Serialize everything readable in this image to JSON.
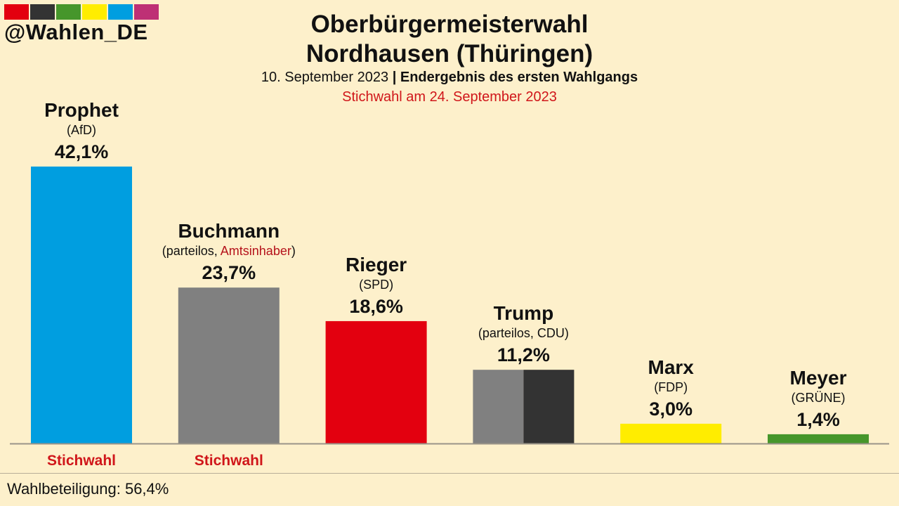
{
  "header": {
    "handle": "@Wahlen_DE",
    "strip_colors": [
      "#e3000f",
      "#333333",
      "#46962b",
      "#ffed00",
      "#009ee0",
      "#be3075"
    ]
  },
  "title": {
    "line1": "Oberbürgermeisterwahl",
    "line2": "Nordhausen (Thüringen)"
  },
  "subtitle": {
    "date": "10. September 2023",
    "separator": "|",
    "result_type": "Endergebnis des ersten Wahlgangs"
  },
  "runoff_note": "Stichwahl am 24. September 2023",
  "footer": {
    "turnout": "Wahlbeteiligung: 56,4%"
  },
  "chart_data": {
    "type": "bar",
    "title": "Oberbürgermeisterwahl Nordhausen (Thüringen)",
    "categories": [
      "Prophet",
      "Buchmann",
      "Rieger",
      "Trump",
      "Marx",
      "Meyer"
    ],
    "values": [
      42.1,
      23.7,
      18.6,
      11.2,
      3.0,
      1.4
    ],
    "value_labels": [
      "42,1%",
      "23,7%",
      "18,6%",
      "11,2%",
      "3,0%",
      "1,4%"
    ],
    "candidates": [
      {
        "name": "Prophet",
        "party": "(AfD)",
        "value": 42.1,
        "label": "42,1%",
        "colors": [
          "#009ee0"
        ],
        "runoff": "Stichwahl"
      },
      {
        "name": "Buchmann",
        "party_prefix": "(parteilos, ",
        "party_highlight": "Amtsinhaber",
        "party_suffix": ")",
        "value": 23.7,
        "label": "23,7%",
        "colors": [
          "#808080"
        ],
        "runoff": "Stichwahl"
      },
      {
        "name": "Rieger",
        "party": "(SPD)",
        "value": 18.6,
        "label": "18,6%",
        "colors": [
          "#e3000f"
        ]
      },
      {
        "name": "Trump",
        "party": "(parteilos, CDU)",
        "value": 11.2,
        "label": "11,2%",
        "colors": [
          "#808080",
          "#333333"
        ]
      },
      {
        "name": "Marx",
        "party": "(FDP)",
        "value": 3.0,
        "label": "3,0%",
        "colors": [
          "#ffed00"
        ]
      },
      {
        "name": "Meyer",
        "party": "(GRÜNE)",
        "value": 1.4,
        "label": "1,4%",
        "colors": [
          "#46962b"
        ]
      }
    ],
    "ylim": [
      0,
      42.1
    ],
    "xlabel": "",
    "ylabel": "",
    "grid": false,
    "highlight_color": "#b5121b",
    "runoff_color": "#d0161a"
  }
}
